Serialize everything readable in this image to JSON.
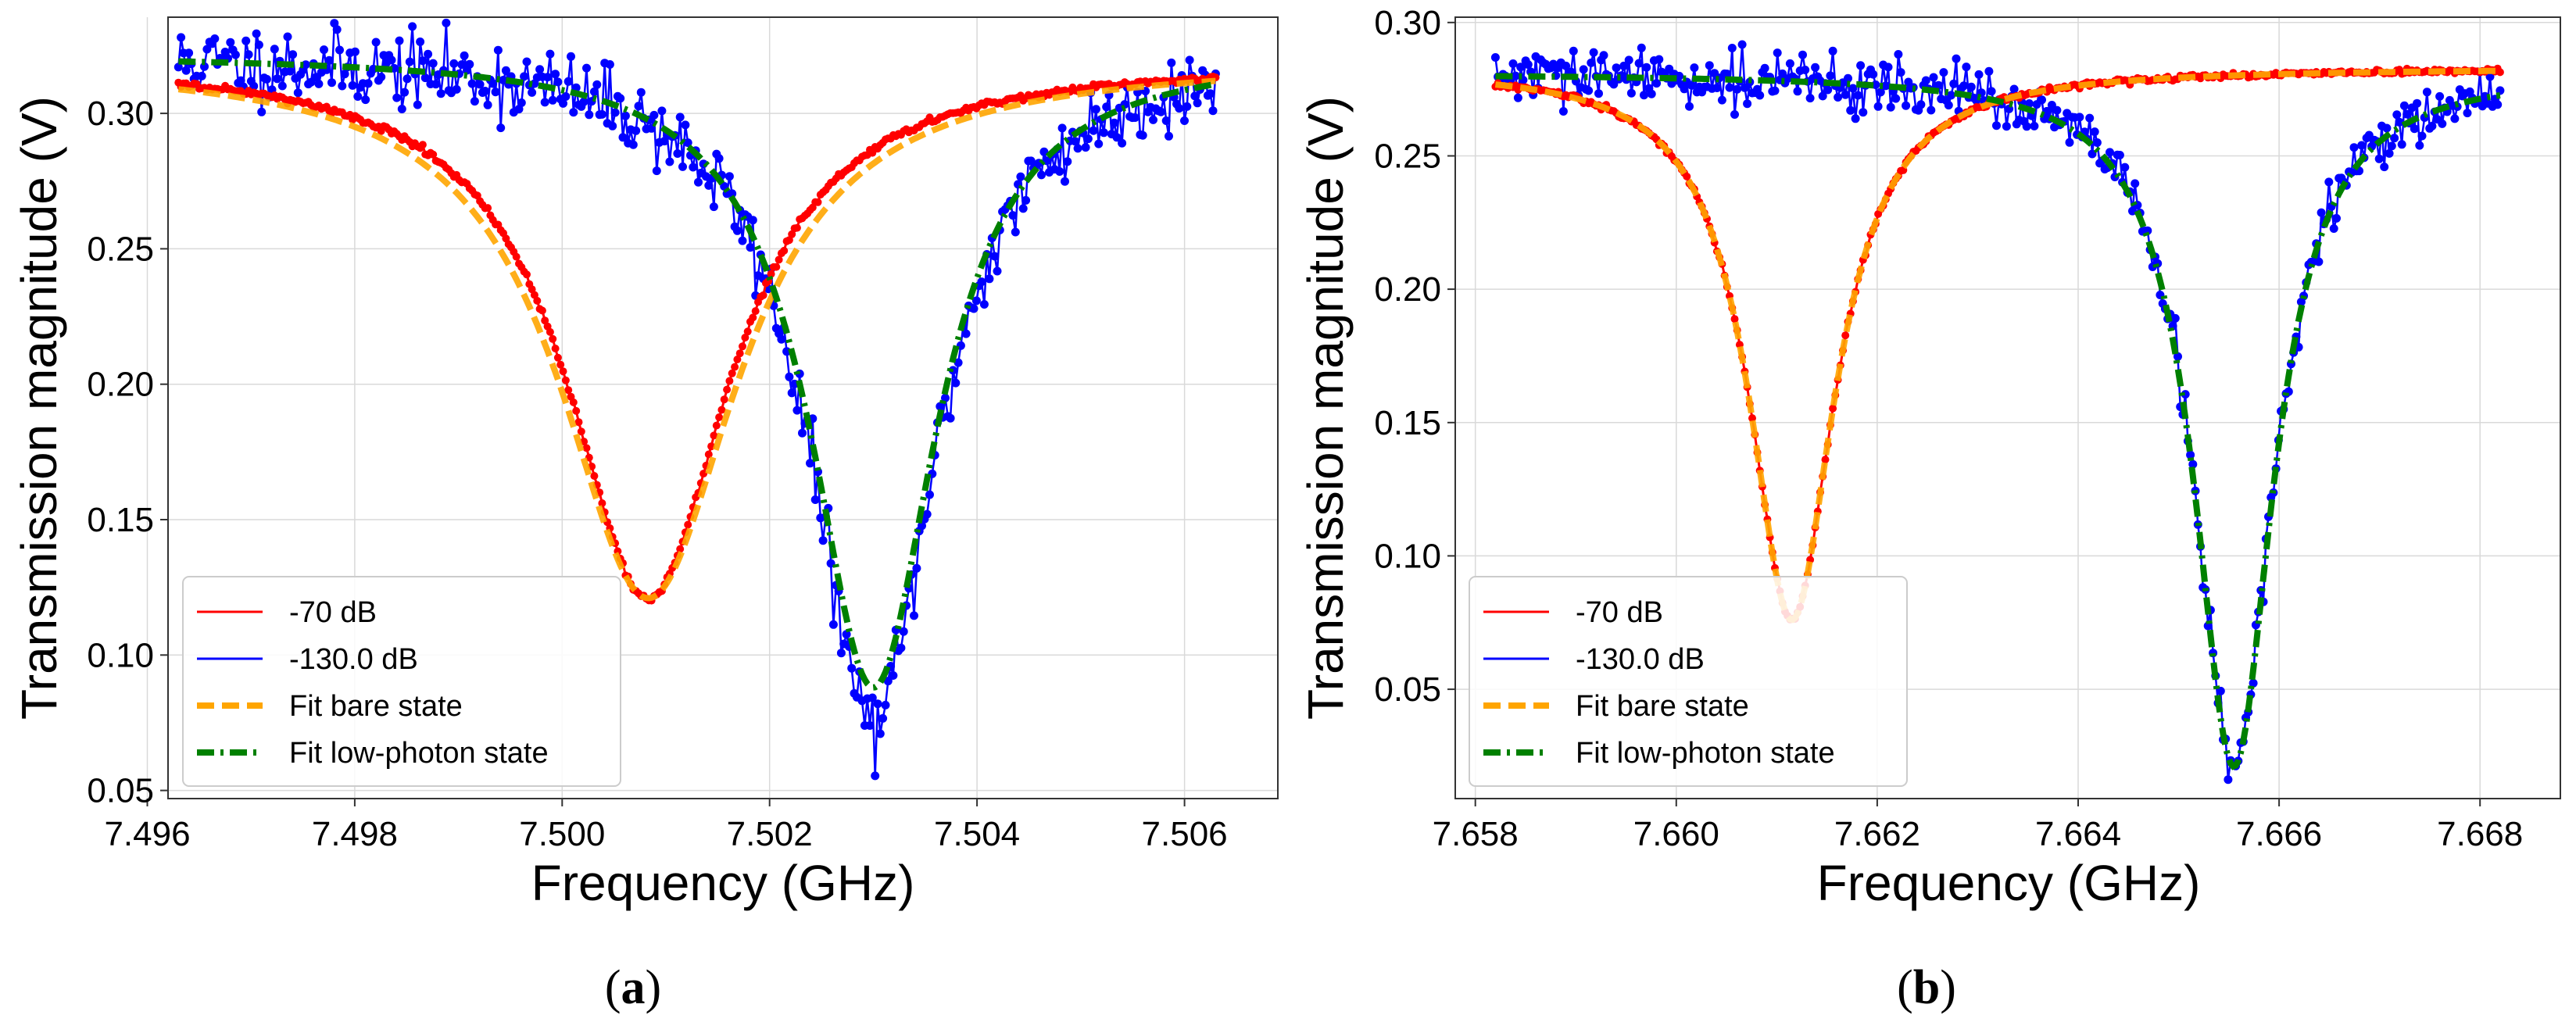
{
  "colors": {
    "low_power": "#ff0000",
    "high_power": "#0000ff",
    "fit_bare": "#ffa500",
    "fit_low": "#008000",
    "grid": "#d9d9d9",
    "axes": "#333333"
  },
  "chart_data": [
    {
      "type": "line",
      "panel_label": "a",
      "xlabel": "Frequency (GHz)",
      "ylabel": "Transmission magnitude (V)",
      "xlim": [
        7.4962,
        7.5069
      ],
      "ylim": [
        0.047,
        0.3355
      ],
      "x_ticks": [
        7.496,
        7.498,
        7.5,
        7.502,
        7.504,
        7.506
      ],
      "x_tick_labels": [
        "7.496",
        "7.498",
        "7.500",
        "7.502",
        "7.504",
        "7.506"
      ],
      "y_ticks": [
        0.05,
        0.1,
        0.15,
        0.2,
        0.25,
        0.3
      ],
      "y_tick_labels": [
        "0.05",
        "0.10",
        "0.15",
        "0.20",
        "0.25",
        "0.30"
      ],
      "grid": true,
      "legend_position": "lower-left",
      "legend": [
        "-70 dB",
        "-130.0 dB",
        "Fit bare state",
        "Fit low-photon state"
      ],
      "x_start": 7.4963,
      "x_end": 7.5063,
      "series": [
        {
          "name": "-70 dB",
          "kind": "resonance",
          "f0": 7.50083,
          "width": 0.00096,
          "baseline": 0.319,
          "min": 0.121,
          "noise": 0.0006
        },
        {
          "name": "-130.0 dB",
          "kind": "resonance",
          "f0": 7.503,
          "width": 0.00074,
          "baseline": 0.322,
          "min": 0.075,
          "noise": 0.007
        },
        {
          "name": "Fit bare state",
          "kind": "resonance",
          "f0": 7.50083,
          "width": 0.00105,
          "baseline": 0.319,
          "min": 0.121
        },
        {
          "name": "Fit low-photon state",
          "kind": "resonance",
          "f0": 7.503,
          "width": 0.00074,
          "baseline": 0.322,
          "min": 0.088
        }
      ]
    },
    {
      "type": "line",
      "panel_label": "b",
      "xlabel": "Frequency (GHz)",
      "ylabel": "Transmission magnitude (V)",
      "xlim": [
        7.6578,
        7.6688
      ],
      "ylim": [
        0.009,
        0.302
      ],
      "x_ticks": [
        7.658,
        7.66,
        7.662,
        7.664,
        7.666,
        7.668
      ],
      "x_tick_labels": [
        "7.658",
        "7.660",
        "7.662",
        "7.664",
        "7.666",
        "7.668"
      ],
      "y_ticks": [
        0.05,
        0.1,
        0.15,
        0.2,
        0.25,
        0.3
      ],
      "y_tick_labels": [
        "0.05",
        "0.10",
        "0.15",
        "0.20",
        "0.25",
        "0.30"
      ],
      "grid": true,
      "legend_position": "lower-left",
      "legend": [
        "-70 dB",
        "-130.0 dB",
        "Fit bare state",
        "Fit low-photon state"
      ],
      "x_start": 7.6582,
      "x_end": 7.6682,
      "series": [
        {
          "name": "-70 dB",
          "kind": "resonance",
          "f0": 7.66115,
          "width": 0.00052,
          "baseline": 0.283,
          "min": 0.076,
          "noise": 0.0005
        },
        {
          "name": "-130.0 dB",
          "kind": "resonance",
          "f0": 7.66555,
          "width": 0.00048,
          "baseline": 0.281,
          "min": 0.021,
          "noise": 0.005
        },
        {
          "name": "Fit bare state",
          "kind": "resonance",
          "f0": 7.66115,
          "width": 0.00052,
          "baseline": 0.283,
          "min": 0.076
        },
        {
          "name": "Fit low-photon state",
          "kind": "resonance",
          "f0": 7.66555,
          "width": 0.00048,
          "baseline": 0.281,
          "min": 0.021
        }
      ]
    }
  ]
}
